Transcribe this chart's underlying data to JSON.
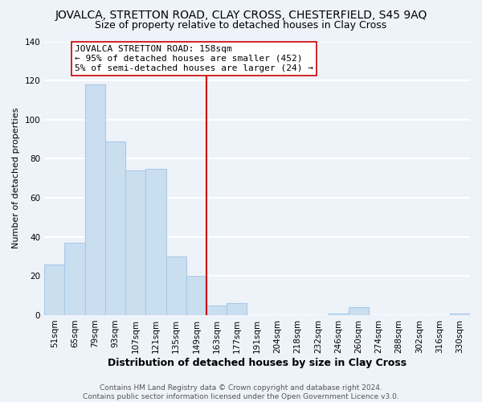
{
  "title": "JOVALCA, STRETTON ROAD, CLAY CROSS, CHESTERFIELD, S45 9AQ",
  "subtitle": "Size of property relative to detached houses in Clay Cross",
  "xlabel": "Distribution of detached houses by size in Clay Cross",
  "ylabel": "Number of detached properties",
  "bar_labels": [
    "51sqm",
    "65sqm",
    "79sqm",
    "93sqm",
    "107sqm",
    "121sqm",
    "135sqm",
    "149sqm",
    "163sqm",
    "177sqm",
    "191sqm",
    "204sqm",
    "218sqm",
    "232sqm",
    "246sqm",
    "260sqm",
    "274sqm",
    "288sqm",
    "302sqm",
    "316sqm",
    "330sqm"
  ],
  "bar_values": [
    26,
    37,
    118,
    89,
    74,
    75,
    30,
    20,
    5,
    6,
    0,
    0,
    0,
    0,
    1,
    4,
    0,
    0,
    0,
    0,
    1
  ],
  "bar_color": "#c9dff0",
  "bar_edgecolor": "#a8c8e8",
  "vline_x_idx": 7.5,
  "vline_color": "#cc0000",
  "annotation_text_line1": "JOVALCA STRETTON ROAD: 158sqm",
  "annotation_text_line2": "← 95% of detached houses are smaller (452)",
  "annotation_text_line3": "5% of semi-detached houses are larger (24) →",
  "annotation_box_facecolor": "white",
  "annotation_box_edgecolor": "#cc0000",
  "ylim": [
    0,
    140
  ],
  "yticks": [
    0,
    20,
    40,
    60,
    80,
    100,
    120,
    140
  ],
  "footer_line1": "Contains HM Land Registry data © Crown copyright and database right 2024.",
  "footer_line2": "Contains public sector information licensed under the Open Government Licence v3.0.",
  "background_color": "#eef3fa",
  "grid_color": "white",
  "title_fontsize": 10,
  "subtitle_fontsize": 9,
  "xlabel_fontsize": 9,
  "ylabel_fontsize": 8,
  "tick_fontsize": 7.5,
  "annotation_fontsize": 8,
  "footer_fontsize": 6.5
}
